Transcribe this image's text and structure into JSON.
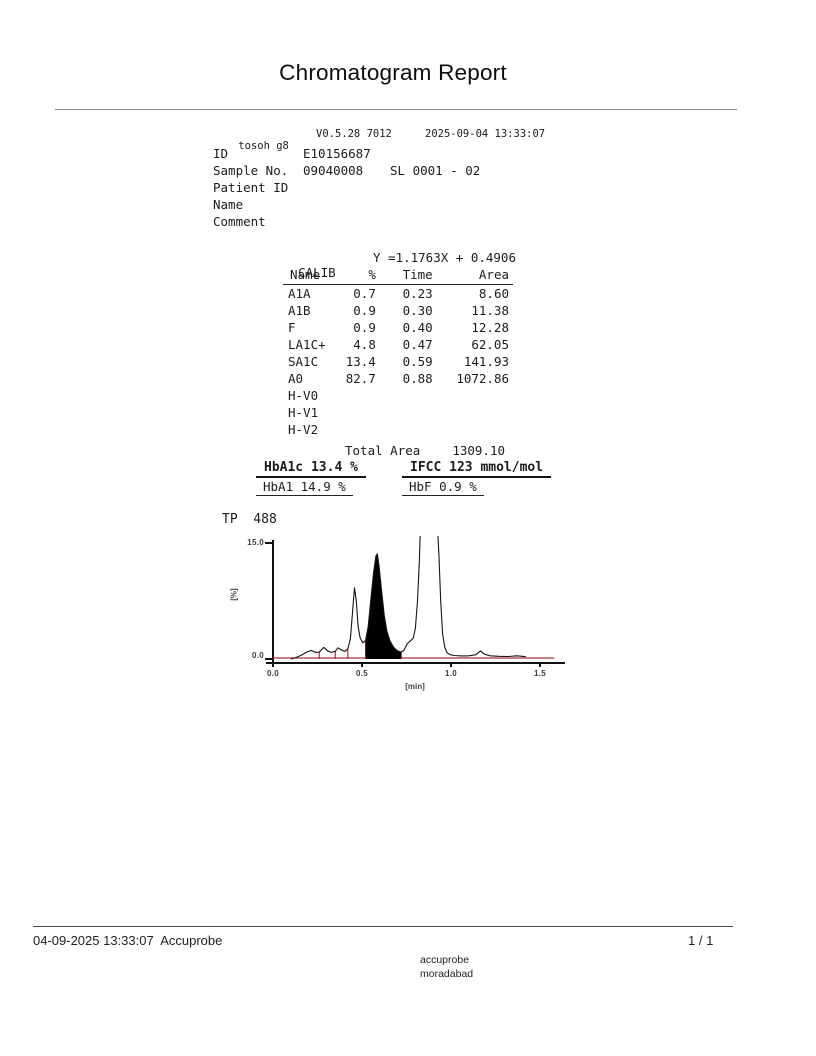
{
  "page": {
    "title": "Chromatogram Report"
  },
  "device_header": {
    "device": "tosoh g8",
    "version": "V0.5.28 7012",
    "datetime": "2025-09-04 13:33:07",
    "rows": [
      {
        "label": "ID",
        "value": "E10156687",
        "extra": ""
      },
      {
        "label": "Sample No.",
        "value": "09040008",
        "extra": "SL 0001 - 02"
      },
      {
        "label": "Patient ID",
        "value": "",
        "extra": ""
      },
      {
        "label": "Name",
        "value": "",
        "extra": ""
      },
      {
        "label": "Comment",
        "value": "",
        "extra": ""
      }
    ]
  },
  "calib": {
    "label": "CALIB",
    "equation": "Y =1.1763X + 0.4906"
  },
  "peak_table": {
    "columns": [
      "Name",
      "%",
      "Time",
      "Area"
    ],
    "rows": [
      [
        "A1A",
        "0.7",
        "0.23",
        "8.60"
      ],
      [
        "A1B",
        "0.9",
        "0.30",
        "11.38"
      ],
      [
        "F",
        "0.9",
        "0.40",
        "12.28"
      ],
      [
        "LA1C+",
        "4.8",
        "0.47",
        "62.05"
      ],
      [
        "SA1C",
        "13.4",
        "0.59",
        "141.93"
      ],
      [
        "A0",
        "82.7",
        "0.88",
        "1072.86"
      ],
      [
        "H-V0",
        "",
        "",
        ""
      ],
      [
        "H-V1",
        "",
        "",
        ""
      ],
      [
        "H-V2",
        "",
        "",
        ""
      ]
    ],
    "total_label": "Total Area",
    "total_value": "1309.10"
  },
  "results": {
    "hba1c": "HbA1c 13.4 %",
    "ifcc": "IFCC 123 mmol/mol",
    "hba1": "HbA1 14.9 %",
    "hbf": "HbF 0.9 %"
  },
  "chart_data": {
    "type": "area",
    "title": "TP  488",
    "xlabel": "[min]",
    "ylabel": "[%]",
    "xlim": [
      0,
      1.58
    ],
    "ylim": [
      0,
      15
    ],
    "x_ticks": [
      0.0,
      0.5,
      1.0,
      1.5
    ],
    "x_tick_labels": [
      "0.0",
      "0.5",
      "1.0",
      "1.5"
    ],
    "y_tick_labels": [
      "15.0",
      "0.0"
    ],
    "curve_color": "#141414",
    "baseline_color": "#aa3434",
    "fill_color": "#000000",
    "fill_between": [
      0.52,
      0.72
    ],
    "boundaries": [
      [
        0.26,
        0.9
      ],
      [
        0.35,
        1.0
      ],
      [
        0.42,
        1.3
      ],
      [
        0.52,
        2.4
      ],
      [
        0.72,
        0.9
      ]
    ],
    "curve": [
      [
        0.1,
        0.0
      ],
      [
        0.13,
        0.2
      ],
      [
        0.16,
        0.5
      ],
      [
        0.19,
        0.9
      ],
      [
        0.215,
        1.1
      ],
      [
        0.24,
        0.85
      ],
      [
        0.26,
        0.9
      ],
      [
        0.285,
        1.5
      ],
      [
        0.31,
        1.0
      ],
      [
        0.33,
        0.85
      ],
      [
        0.35,
        1.0
      ],
      [
        0.365,
        1.45
      ],
      [
        0.39,
        1.1
      ],
      [
        0.405,
        1.0
      ],
      [
        0.42,
        1.3
      ],
      [
        0.435,
        2.6
      ],
      [
        0.45,
        7.0
      ],
      [
        0.458,
        9.2
      ],
      [
        0.468,
        7.5
      ],
      [
        0.478,
        4.2
      ],
      [
        0.49,
        2.7
      ],
      [
        0.505,
        2.1
      ],
      [
        0.52,
        2.4
      ],
      [
        0.535,
        4.2
      ],
      [
        0.55,
        7.8
      ],
      [
        0.565,
        11.2
      ],
      [
        0.578,
        13.3
      ],
      [
        0.586,
        13.6
      ],
      [
        0.595,
        12.2
      ],
      [
        0.61,
        8.8
      ],
      [
        0.625,
        5.6
      ],
      [
        0.64,
        3.6
      ],
      [
        0.658,
        2.3
      ],
      [
        0.678,
        1.5
      ],
      [
        0.7,
        1.05
      ],
      [
        0.72,
        0.9
      ],
      [
        0.735,
        1.1
      ],
      [
        0.755,
        2.0
      ],
      [
        0.77,
        2.3
      ],
      [
        0.788,
        2.7
      ],
      [
        0.8,
        4.0
      ],
      [
        0.812,
        7.5
      ],
      [
        0.822,
        12.5
      ],
      [
        0.83,
        18.0
      ],
      [
        0.86,
        30.0
      ],
      [
        0.9,
        30.0
      ],
      [
        0.922,
        18.0
      ],
      [
        0.932,
        13.5
      ],
      [
        0.942,
        7.5
      ],
      [
        0.953,
        3.2
      ],
      [
        0.965,
        1.5
      ],
      [
        0.978,
        0.8
      ],
      [
        0.995,
        0.55
      ],
      [
        1.02,
        0.45
      ],
      [
        1.06,
        0.4
      ],
      [
        1.1,
        0.42
      ],
      [
        1.14,
        0.55
      ],
      [
        1.165,
        1.05
      ],
      [
        1.19,
        0.6
      ],
      [
        1.22,
        0.42
      ],
      [
        1.27,
        0.35
      ],
      [
        1.32,
        0.32
      ],
      [
        1.37,
        0.42
      ],
      [
        1.4,
        0.35
      ],
      [
        1.42,
        0.3
      ]
    ]
  },
  "footer": {
    "left": "04-09-2025 13:33:07  Accuprobe",
    "page": "1 / 1",
    "org_line1": "accuprobe",
    "org_line2": "moradabad"
  }
}
